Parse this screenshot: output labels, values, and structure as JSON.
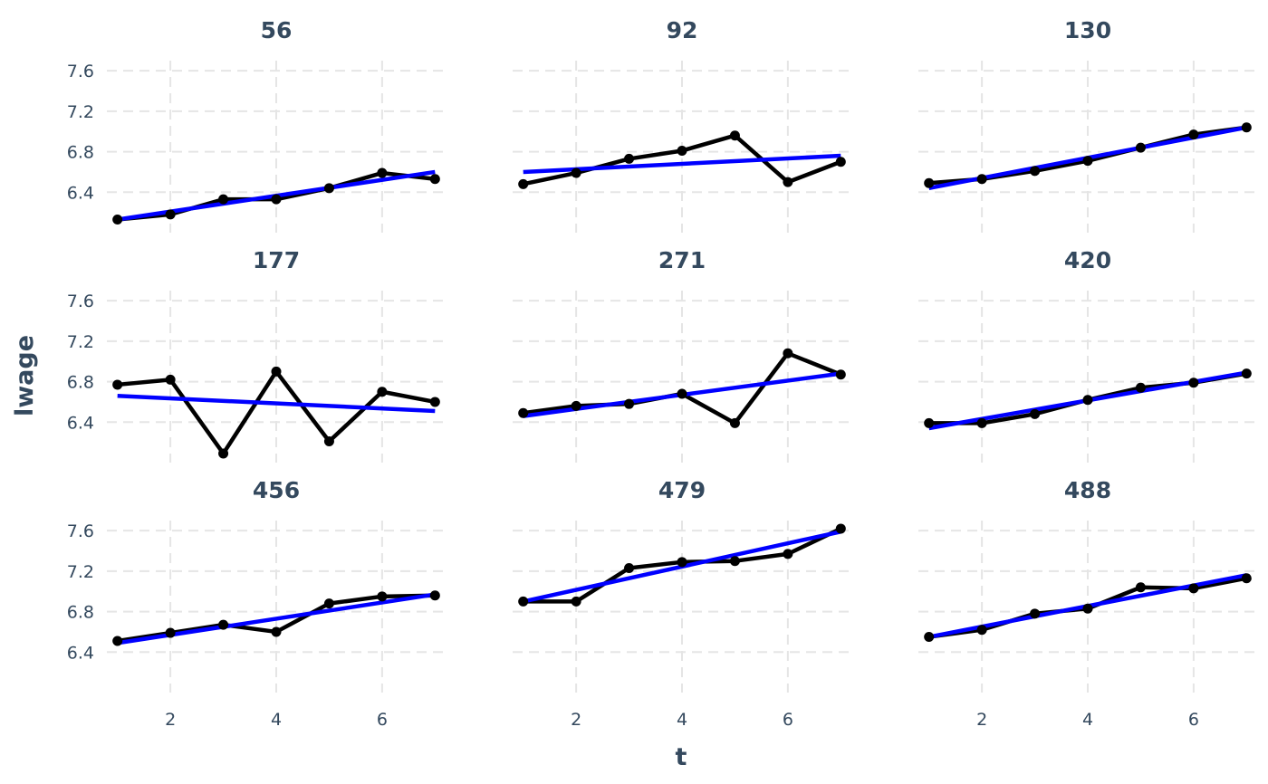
{
  "chart_data": {
    "type": "line",
    "xlabel": "t",
    "ylabel": "lwage",
    "xlim": [
      0.8,
      7.2
    ],
    "ylim": [
      6.0,
      7.7
    ],
    "xticks": [
      2,
      4,
      6
    ],
    "xtick_labels": [
      "2",
      "4",
      "6"
    ],
    "yticks": [
      6.4,
      6.8,
      7.2,
      7.6
    ],
    "ytick_labels": [
      "6.4",
      "6.8",
      "7.2",
      "7.6"
    ],
    "grid": true,
    "colors": {
      "observed": "#000000",
      "fit": "#0000ff",
      "text": "#34495e",
      "grid": "#e5e5e5"
    },
    "x": [
      1,
      2,
      3,
      4,
      5,
      6,
      7
    ],
    "facets": [
      {
        "title": "56",
        "values": [
          6.13,
          6.18,
          6.33,
          6.33,
          6.44,
          6.59,
          6.53
        ],
        "fit": [
          6.13,
          6.6
        ]
      },
      {
        "title": "92",
        "values": [
          6.48,
          6.59,
          6.73,
          6.81,
          6.96,
          6.5,
          6.7
        ],
        "fit": [
          6.6,
          6.76
        ]
      },
      {
        "title": "130",
        "values": [
          6.49,
          6.53,
          6.61,
          6.71,
          6.84,
          6.97,
          7.04
        ],
        "fit": [
          6.44,
          7.04
        ]
      },
      {
        "title": "177",
        "values": [
          6.77,
          6.82,
          6.09,
          6.9,
          6.21,
          6.7,
          6.6
        ],
        "fit": [
          6.66,
          6.51
        ]
      },
      {
        "title": "271",
        "values": [
          6.49,
          6.56,
          6.58,
          6.68,
          6.39,
          7.08,
          6.87
        ],
        "fit": [
          6.46,
          6.88
        ]
      },
      {
        "title": "420",
        "values": [
          6.39,
          6.39,
          6.48,
          6.62,
          6.74,
          6.79,
          6.88
        ],
        "fit": [
          6.34,
          6.89
        ]
      },
      {
        "title": "456",
        "values": [
          6.51,
          6.59,
          6.67,
          6.6,
          6.88,
          6.95,
          6.96
        ],
        "fit": [
          6.49,
          6.97
        ]
      },
      {
        "title": "479",
        "values": [
          6.9,
          6.9,
          7.23,
          7.29,
          7.3,
          7.37,
          7.62
        ],
        "fit": [
          6.9,
          7.59
        ]
      },
      {
        "title": "488",
        "values": [
          6.55,
          6.62,
          6.78,
          6.83,
          7.04,
          7.03,
          7.13
        ],
        "fit": [
          6.55,
          7.16
        ]
      }
    ]
  }
}
